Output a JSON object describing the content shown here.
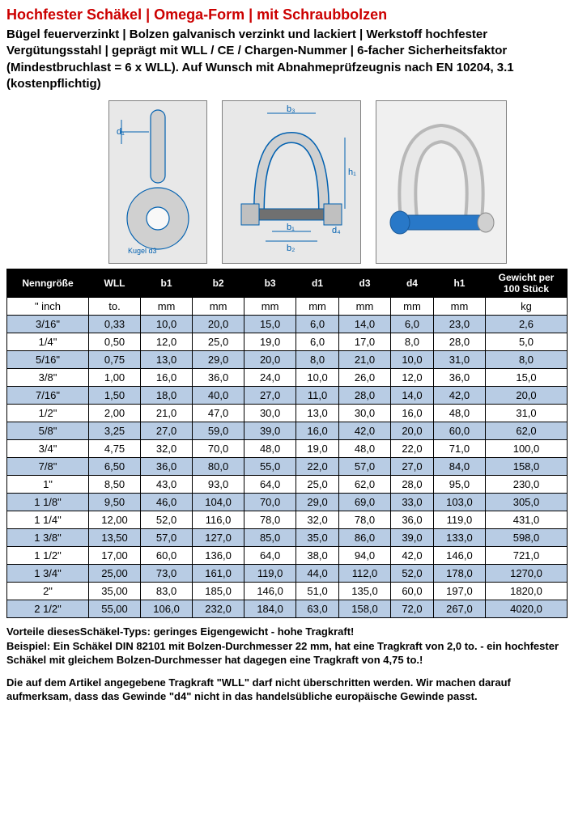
{
  "title": "Hochfester Schäkel | Omega-Form | mit Schraubbolzen",
  "subtitle": "Bügel feuerverzinkt | Bolzen galvanisch verzinkt und lackiert | Werkstoff hochfester Vergütungsstahl | geprägt mit WLL / CE / Chargen-Nummer | 6-facher Sicherheitsfaktor (Mindestbruchlast = 6 x WLL). Auf Wunsch mit Abnahmeprüfzeugnis nach EN 10204, 3.1 (kostenpflichtig)",
  "diagram_labels": {
    "d1": "d₁",
    "kugel": "Kugel d3",
    "b1": "b₁",
    "b2": "b₂",
    "b3": "b₃",
    "d4": "d₄",
    "h1": "h₁"
  },
  "table": {
    "columns": [
      "Nenngröße",
      "WLL",
      "b1",
      "b2",
      "b3",
      "d1",
      "d3",
      "d4",
      "h1",
      "Gewicht per 100 Stück"
    ],
    "units": [
      "\" inch",
      "to.",
      "mm",
      "mm",
      "mm",
      "mm",
      "mm",
      "mm",
      "mm",
      "kg"
    ],
    "rows": [
      [
        "3/16\"",
        "0,33",
        "10,0",
        "20,0",
        "15,0",
        "6,0",
        "14,0",
        "6,0",
        "23,0",
        "2,6"
      ],
      [
        "1/4\"",
        "0,50",
        "12,0",
        "25,0",
        "19,0",
        "6,0",
        "17,0",
        "8,0",
        "28,0",
        "5,0"
      ],
      [
        "5/16\"",
        "0,75",
        "13,0",
        "29,0",
        "20,0",
        "8,0",
        "21,0",
        "10,0",
        "31,0",
        "8,0"
      ],
      [
        "3/8\"",
        "1,00",
        "16,0",
        "36,0",
        "24,0",
        "10,0",
        "26,0",
        "12,0",
        "36,0",
        "15,0"
      ],
      [
        "7/16\"",
        "1,50",
        "18,0",
        "40,0",
        "27,0",
        "11,0",
        "28,0",
        "14,0",
        "42,0",
        "20,0"
      ],
      [
        "1/2\"",
        "2,00",
        "21,0",
        "47,0",
        "30,0",
        "13,0",
        "30,0",
        "16,0",
        "48,0",
        "31,0"
      ],
      [
        "5/8\"",
        "3,25",
        "27,0",
        "59,0",
        "39,0",
        "16,0",
        "42,0",
        "20,0",
        "60,0",
        "62,0"
      ],
      [
        "3/4\"",
        "4,75",
        "32,0",
        "70,0",
        "48,0",
        "19,0",
        "48,0",
        "22,0",
        "71,0",
        "100,0"
      ],
      [
        "7/8\"",
        "6,50",
        "36,0",
        "80,0",
        "55,0",
        "22,0",
        "57,0",
        "27,0",
        "84,0",
        "158,0"
      ],
      [
        "1\"",
        "8,50",
        "43,0",
        "93,0",
        "64,0",
        "25,0",
        "62,0",
        "28,0",
        "95,0",
        "230,0"
      ],
      [
        "1 1/8\"",
        "9,50",
        "46,0",
        "104,0",
        "70,0",
        "29,0",
        "69,0",
        "33,0",
        "103,0",
        "305,0"
      ],
      [
        "1 1/4\"",
        "12,00",
        "52,0",
        "116,0",
        "78,0",
        "32,0",
        "78,0",
        "36,0",
        "119,0",
        "431,0"
      ],
      [
        "1 3/8\"",
        "13,50",
        "57,0",
        "127,0",
        "85,0",
        "35,0",
        "86,0",
        "39,0",
        "133,0",
        "598,0"
      ],
      [
        "1 1/2\"",
        "17,00",
        "60,0",
        "136,0",
        "64,0",
        "38,0",
        "94,0",
        "42,0",
        "146,0",
        "721,0"
      ],
      [
        "1 3/4\"",
        "25,00",
        "73,0",
        "161,0",
        "119,0",
        "44,0",
        "112,0",
        "52,0",
        "178,0",
        "1270,0"
      ],
      [
        "2\"",
        "35,00",
        "83,0",
        "185,0",
        "146,0",
        "51,0",
        "135,0",
        "60,0",
        "197,0",
        "1820,0"
      ],
      [
        "2 1/2\"",
        "55,00",
        "106,0",
        "232,0",
        "184,0",
        "63,0",
        "158,0",
        "72,0",
        "267,0",
        "4020,0"
      ]
    ],
    "alt_color": "#b8cce4",
    "header_bg": "#000000",
    "header_fg": "#ffffff",
    "border_color": "#000000"
  },
  "footer": {
    "p1": "Vorteile diesesSchäkel-Typs: geringes Eigengewicht - hohe Tragkraft!",
    "p2": "Beispiel: Ein Schäkel DIN 82101 mit Bolzen-Durchmesser 22 mm, hat eine Tragkraft von 2,0 to. - ein hochfester Schäkel mit gleichem Bolzen-Durchmesser hat dagegen eine Tragkraft von 4,75 to.!",
    "p3": "Die auf dem Artikel angegebene Tragkraft \"WLL\" darf nicht überschritten werden. Wir machen darauf aufmerksam, dass das Gewinde \"d4\" nicht in das handelsübliche europäische Gewinde passt."
  }
}
